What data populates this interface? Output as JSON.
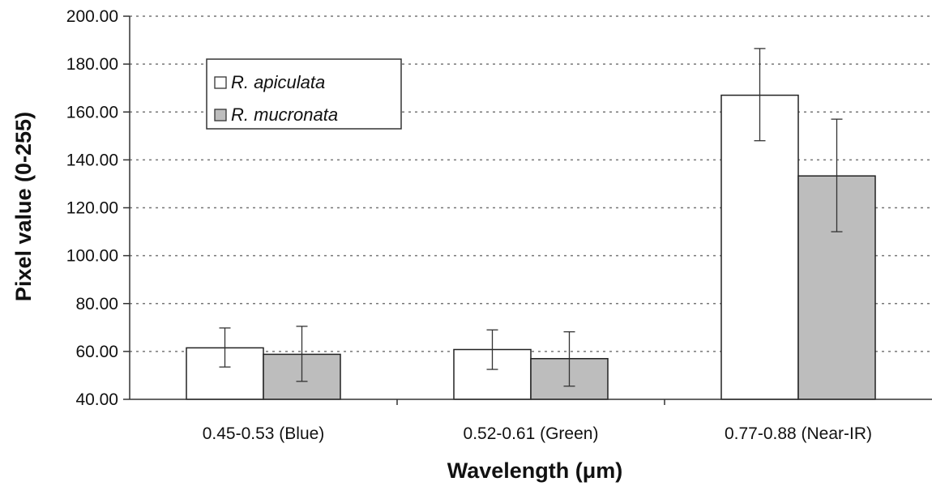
{
  "chart_data": {
    "type": "bar",
    "title": "",
    "xlabel": "Wavelength (μm)",
    "ylabel": "Pixel value (0-255)",
    "ylim": [
      40,
      200
    ],
    "yticks": [
      "40.00",
      "60.00",
      "80.00",
      "100.00",
      "120.00",
      "140.00",
      "160.00",
      "180.00",
      "200.00"
    ],
    "grid": "horizontal dotted",
    "legend_position": "top-left",
    "categories": [
      "0.45-0.53 (Blue)",
      "0.52-0.61 (Green)",
      "0.77-0.88 (Near-IR)"
    ],
    "series": [
      {
        "name": "R. apiculata",
        "color": "#ffffff",
        "values": [
          61.5,
          60.8,
          167.0
        ],
        "error_low": [
          53.5,
          52.5,
          148.0
        ],
        "error_high": [
          69.8,
          69.0,
          186.5
        ]
      },
      {
        "name": "R. mucronata",
        "color": "#bdbdbd",
        "values": [
          58.8,
          57.0,
          133.3
        ],
        "error_low": [
          47.5,
          45.5,
          110.0
        ],
        "error_high": [
          70.5,
          68.2,
          157.0
        ]
      }
    ]
  }
}
